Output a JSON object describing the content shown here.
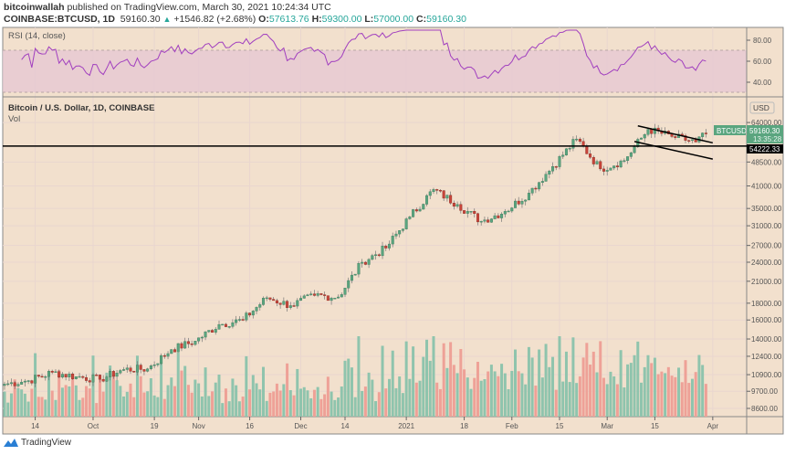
{
  "header": {
    "author": "bitcoinwallah",
    "published": "published on TradingView.com, March 30, 2021 10:24:34 UTC",
    "symbol": "COINBASE:BTCUSD, 1D",
    "last": "59160.30",
    "change": "+1546.82 (+2.68%)",
    "o_label": "O:",
    "o": "57613.76",
    "h_label": "H:",
    "h": "59300.00",
    "l_label": "L:",
    "l": "57000.00",
    "c_label": "C:",
    "c": "59160.30"
  },
  "footer": {
    "brand": "TradingView"
  },
  "colors": {
    "bg": "#f2e0cd",
    "up": "#5aa57f",
    "down": "#c9453a",
    "rsi": "#a13fbf",
    "rsi_band": "#e6c8d3"
  },
  "chart_data": {
    "type": "candlestick",
    "rsi": {
      "title": "RSI (14, close)",
      "ticks": [
        "80.00",
        "60.00",
        "40.00"
      ],
      "band": [
        30,
        70
      ]
    },
    "main": {
      "title": "Bitcoin / U.S. Dollar, 1D, COINBASE",
      "vol_label": "Vol",
      "currency": "USD",
      "scale": "log",
      "price_ticks": [
        "64000.00",
        "48500.00",
        "41000.00",
        "35000.00",
        "31000.00",
        "27000.00",
        "24000.00",
        "21000.00",
        "18000.00",
        "16000.00",
        "14000.00",
        "12400.00",
        "10900.00",
        "9700.00",
        "8600.00"
      ],
      "last_label": "BTCUSD",
      "last_price": "59160.30",
      "countdown": "13:35:28",
      "hline_price": "54222.33",
      "start_date": "2020-09-05",
      "weekly_closes": [
        {
          "day": 0,
          "c": 10200
        },
        {
          "day": 7,
          "c": 10450
        },
        {
          "day": 14,
          "c": 11080
        },
        {
          "day": 21,
          "c": 10750
        },
        {
          "day": 28,
          "c": 10550
        },
        {
          "day": 35,
          "c": 11300
        },
        {
          "day": 42,
          "c": 11350
        },
        {
          "day": 49,
          "c": 13000
        },
        {
          "day": 56,
          "c": 13800
        },
        {
          "day": 63,
          "c": 15500
        },
        {
          "day": 70,
          "c": 16000
        },
        {
          "day": 77,
          "c": 18700
        },
        {
          "day": 84,
          "c": 17700
        },
        {
          "day": 91,
          "c": 19000
        },
        {
          "day": 98,
          "c": 18800
        },
        {
          "day": 105,
          "c": 24000
        },
        {
          "day": 112,
          "c": 26500
        },
        {
          "day": 119,
          "c": 33000
        },
        {
          "day": 126,
          "c": 40000
        },
        {
          "day": 133,
          "c": 36000
        },
        {
          "day": 140,
          "c": 32000
        },
        {
          "day": 147,
          "c": 34300
        },
        {
          "day": 154,
          "c": 39000
        },
        {
          "day": 161,
          "c": 47000
        },
        {
          "day": 168,
          "c": 57000
        },
        {
          "day": 175,
          "c": 46200
        },
        {
          "day": 182,
          "c": 49000
        },
        {
          "day": 189,
          "c": 61000
        },
        {
          "day": 196,
          "c": 58000
        },
        {
          "day": 203,
          "c": 55800
        },
        {
          "day": 206,
          "c": 59160
        }
      ],
      "channel": {
        "upper": [
          [
            186,
            62500
          ],
          [
            208,
            55500
          ]
        ],
        "lower": [
          [
            185,
            56000
          ],
          [
            208,
            49500
          ]
        ]
      }
    },
    "x_ticks": [
      {
        "day": 9,
        "label": "14"
      },
      {
        "day": 26,
        "label": "Oct"
      },
      {
        "day": 44,
        "label": "19"
      },
      {
        "day": 57,
        "label": "Nov"
      },
      {
        "day": 72,
        "label": "16"
      },
      {
        "day": 87,
        "label": "Dec"
      },
      {
        "day": 100,
        "label": "14"
      },
      {
        "day": 118,
        "label": "2021"
      },
      {
        "day": 135,
        "label": "18"
      },
      {
        "day": 149,
        "label": "Feb"
      },
      {
        "day": 163,
        "label": "15"
      },
      {
        "day": 177,
        "label": "Mar"
      },
      {
        "day": 191,
        "label": "15"
      },
      {
        "day": 208,
        "label": "Apr"
      }
    ]
  }
}
